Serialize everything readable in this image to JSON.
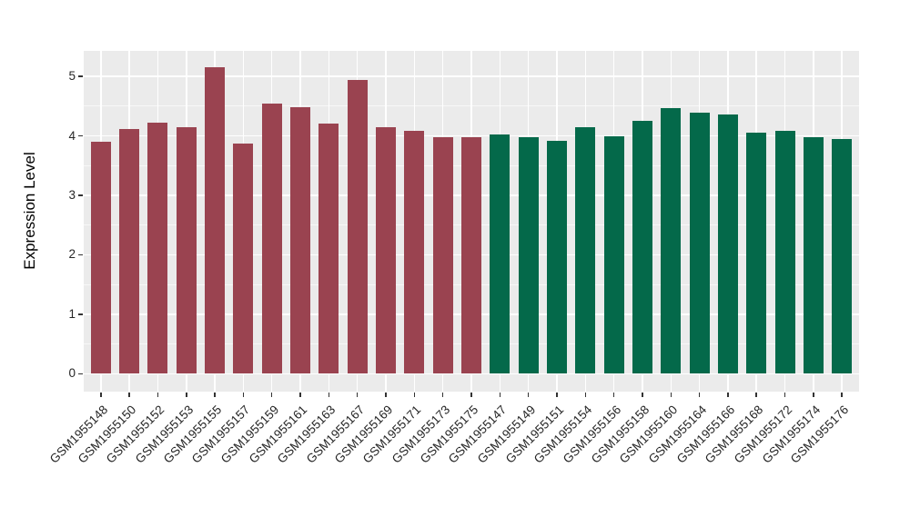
{
  "figure": {
    "background": "#FFFFFF",
    "panel_background": "#EBEBEB",
    "grid_color": "#FFFFFF",
    "axis_text_color": "#262626",
    "axis_title_color": "#000000",
    "tick_mark_color": "#333333"
  },
  "chart_data": {
    "type": "bar",
    "title": "",
    "xlabel": "",
    "ylabel": "Expression Level",
    "ylim": [
      -0.3,
      5.43
    ],
    "yticks": [
      0,
      1,
      2,
      3,
      4,
      5
    ],
    "yminor": [
      0.5,
      1.5,
      2.5,
      3.5,
      4.5
    ],
    "grid": "major-and-minor-white-on-grey",
    "legend_position": "none",
    "x_label_rotation_deg": 45,
    "bar_width_fraction": 0.7,
    "group_colors": {
      "groupA": "#9A4350",
      "groupB": "#04694A"
    },
    "bars": [
      {
        "label": "GSM1955148",
        "value": 3.9,
        "group": "groupA"
      },
      {
        "label": "GSM1955150",
        "value": 4.12,
        "group": "groupA"
      },
      {
        "label": "GSM1955152",
        "value": 4.23,
        "group": "groupA"
      },
      {
        "label": "GSM1955153",
        "value": 4.15,
        "group": "groupA"
      },
      {
        "label": "GSM1955155",
        "value": 5.16,
        "group": "groupA"
      },
      {
        "label": "GSM1955157",
        "value": 3.87,
        "group": "groupA"
      },
      {
        "label": "GSM1955159",
        "value": 4.55,
        "group": "groupA"
      },
      {
        "label": "GSM1955161",
        "value": 4.48,
        "group": "groupA"
      },
      {
        "label": "GSM1955163",
        "value": 4.21,
        "group": "groupA"
      },
      {
        "label": "GSM1955167",
        "value": 4.94,
        "group": "groupA"
      },
      {
        "label": "GSM1955169",
        "value": 4.15,
        "group": "groupA"
      },
      {
        "label": "GSM1955171",
        "value": 4.08,
        "group": "groupA"
      },
      {
        "label": "GSM1955173",
        "value": 3.98,
        "group": "groupA"
      },
      {
        "label": "GSM1955175",
        "value": 3.98,
        "group": "groupA"
      },
      {
        "label": "GSM1955147",
        "value": 4.03,
        "group": "groupB"
      },
      {
        "label": "GSM1955149",
        "value": 3.98,
        "group": "groupB"
      },
      {
        "label": "GSM1955151",
        "value": 3.92,
        "group": "groupB"
      },
      {
        "label": "GSM1955154",
        "value": 4.15,
        "group": "groupB"
      },
      {
        "label": "GSM1955156",
        "value": 4.0,
        "group": "groupB"
      },
      {
        "label": "GSM1955158",
        "value": 4.25,
        "group": "groupB"
      },
      {
        "label": "GSM1955160",
        "value": 4.47,
        "group": "groupB"
      },
      {
        "label": "GSM1955164",
        "value": 4.39,
        "group": "groupB"
      },
      {
        "label": "GSM1955166",
        "value": 4.36,
        "group": "groupB"
      },
      {
        "label": "GSM1955168",
        "value": 4.06,
        "group": "groupB"
      },
      {
        "label": "GSM1955172",
        "value": 4.09,
        "group": "groupB"
      },
      {
        "label": "GSM1955174",
        "value": 3.98,
        "group": "groupB"
      },
      {
        "label": "GSM1955176",
        "value": 3.95,
        "group": "groupB"
      }
    ]
  }
}
